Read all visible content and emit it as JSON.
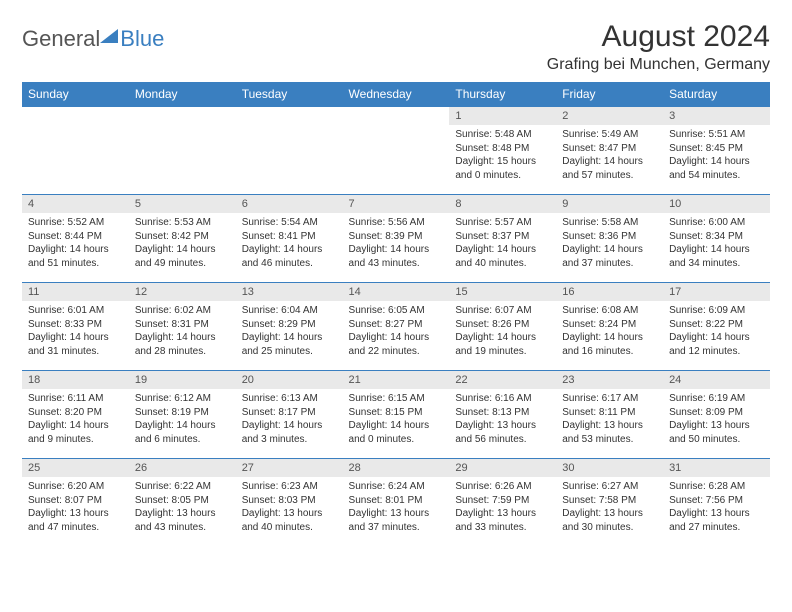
{
  "brand": {
    "part1": "General",
    "part2": "Blue"
  },
  "title": "August 2024",
  "location": "Grafing bei Munchen, Germany",
  "colors": {
    "header_bg": "#3a7fc0",
    "header_text": "#ffffff",
    "daynum_bg": "#e9e9e9",
    "text": "#333333",
    "page_bg": "#ffffff",
    "border": "#3a7fc0"
  },
  "weekdays": [
    "Sunday",
    "Monday",
    "Tuesday",
    "Wednesday",
    "Thursday",
    "Friday",
    "Saturday"
  ],
  "weeks": [
    [
      null,
      null,
      null,
      null,
      {
        "day": "1",
        "sunrise": "Sunrise: 5:48 AM",
        "sunset": "Sunset: 8:48 PM",
        "daylight": "Daylight: 15 hours and 0 minutes."
      },
      {
        "day": "2",
        "sunrise": "Sunrise: 5:49 AM",
        "sunset": "Sunset: 8:47 PM",
        "daylight": "Daylight: 14 hours and 57 minutes."
      },
      {
        "day": "3",
        "sunrise": "Sunrise: 5:51 AM",
        "sunset": "Sunset: 8:45 PM",
        "daylight": "Daylight: 14 hours and 54 minutes."
      }
    ],
    [
      {
        "day": "4",
        "sunrise": "Sunrise: 5:52 AM",
        "sunset": "Sunset: 8:44 PM",
        "daylight": "Daylight: 14 hours and 51 minutes."
      },
      {
        "day": "5",
        "sunrise": "Sunrise: 5:53 AM",
        "sunset": "Sunset: 8:42 PM",
        "daylight": "Daylight: 14 hours and 49 minutes."
      },
      {
        "day": "6",
        "sunrise": "Sunrise: 5:54 AM",
        "sunset": "Sunset: 8:41 PM",
        "daylight": "Daylight: 14 hours and 46 minutes."
      },
      {
        "day": "7",
        "sunrise": "Sunrise: 5:56 AM",
        "sunset": "Sunset: 8:39 PM",
        "daylight": "Daylight: 14 hours and 43 minutes."
      },
      {
        "day": "8",
        "sunrise": "Sunrise: 5:57 AM",
        "sunset": "Sunset: 8:37 PM",
        "daylight": "Daylight: 14 hours and 40 minutes."
      },
      {
        "day": "9",
        "sunrise": "Sunrise: 5:58 AM",
        "sunset": "Sunset: 8:36 PM",
        "daylight": "Daylight: 14 hours and 37 minutes."
      },
      {
        "day": "10",
        "sunrise": "Sunrise: 6:00 AM",
        "sunset": "Sunset: 8:34 PM",
        "daylight": "Daylight: 14 hours and 34 minutes."
      }
    ],
    [
      {
        "day": "11",
        "sunrise": "Sunrise: 6:01 AM",
        "sunset": "Sunset: 8:33 PM",
        "daylight": "Daylight: 14 hours and 31 minutes."
      },
      {
        "day": "12",
        "sunrise": "Sunrise: 6:02 AM",
        "sunset": "Sunset: 8:31 PM",
        "daylight": "Daylight: 14 hours and 28 minutes."
      },
      {
        "day": "13",
        "sunrise": "Sunrise: 6:04 AM",
        "sunset": "Sunset: 8:29 PM",
        "daylight": "Daylight: 14 hours and 25 minutes."
      },
      {
        "day": "14",
        "sunrise": "Sunrise: 6:05 AM",
        "sunset": "Sunset: 8:27 PM",
        "daylight": "Daylight: 14 hours and 22 minutes."
      },
      {
        "day": "15",
        "sunrise": "Sunrise: 6:07 AM",
        "sunset": "Sunset: 8:26 PM",
        "daylight": "Daylight: 14 hours and 19 minutes."
      },
      {
        "day": "16",
        "sunrise": "Sunrise: 6:08 AM",
        "sunset": "Sunset: 8:24 PM",
        "daylight": "Daylight: 14 hours and 16 minutes."
      },
      {
        "day": "17",
        "sunrise": "Sunrise: 6:09 AM",
        "sunset": "Sunset: 8:22 PM",
        "daylight": "Daylight: 14 hours and 12 minutes."
      }
    ],
    [
      {
        "day": "18",
        "sunrise": "Sunrise: 6:11 AM",
        "sunset": "Sunset: 8:20 PM",
        "daylight": "Daylight: 14 hours and 9 minutes."
      },
      {
        "day": "19",
        "sunrise": "Sunrise: 6:12 AM",
        "sunset": "Sunset: 8:19 PM",
        "daylight": "Daylight: 14 hours and 6 minutes."
      },
      {
        "day": "20",
        "sunrise": "Sunrise: 6:13 AM",
        "sunset": "Sunset: 8:17 PM",
        "daylight": "Daylight: 14 hours and 3 minutes."
      },
      {
        "day": "21",
        "sunrise": "Sunrise: 6:15 AM",
        "sunset": "Sunset: 8:15 PM",
        "daylight": "Daylight: 14 hours and 0 minutes."
      },
      {
        "day": "22",
        "sunrise": "Sunrise: 6:16 AM",
        "sunset": "Sunset: 8:13 PM",
        "daylight": "Daylight: 13 hours and 56 minutes."
      },
      {
        "day": "23",
        "sunrise": "Sunrise: 6:17 AM",
        "sunset": "Sunset: 8:11 PM",
        "daylight": "Daylight: 13 hours and 53 minutes."
      },
      {
        "day": "24",
        "sunrise": "Sunrise: 6:19 AM",
        "sunset": "Sunset: 8:09 PM",
        "daylight": "Daylight: 13 hours and 50 minutes."
      }
    ],
    [
      {
        "day": "25",
        "sunrise": "Sunrise: 6:20 AM",
        "sunset": "Sunset: 8:07 PM",
        "daylight": "Daylight: 13 hours and 47 minutes."
      },
      {
        "day": "26",
        "sunrise": "Sunrise: 6:22 AM",
        "sunset": "Sunset: 8:05 PM",
        "daylight": "Daylight: 13 hours and 43 minutes."
      },
      {
        "day": "27",
        "sunrise": "Sunrise: 6:23 AM",
        "sunset": "Sunset: 8:03 PM",
        "daylight": "Daylight: 13 hours and 40 minutes."
      },
      {
        "day": "28",
        "sunrise": "Sunrise: 6:24 AM",
        "sunset": "Sunset: 8:01 PM",
        "daylight": "Daylight: 13 hours and 37 minutes."
      },
      {
        "day": "29",
        "sunrise": "Sunrise: 6:26 AM",
        "sunset": "Sunset: 7:59 PM",
        "daylight": "Daylight: 13 hours and 33 minutes."
      },
      {
        "day": "30",
        "sunrise": "Sunrise: 6:27 AM",
        "sunset": "Sunset: 7:58 PM",
        "daylight": "Daylight: 13 hours and 30 minutes."
      },
      {
        "day": "31",
        "sunrise": "Sunrise: 6:28 AM",
        "sunset": "Sunset: 7:56 PM",
        "daylight": "Daylight: 13 hours and 27 minutes."
      }
    ]
  ]
}
